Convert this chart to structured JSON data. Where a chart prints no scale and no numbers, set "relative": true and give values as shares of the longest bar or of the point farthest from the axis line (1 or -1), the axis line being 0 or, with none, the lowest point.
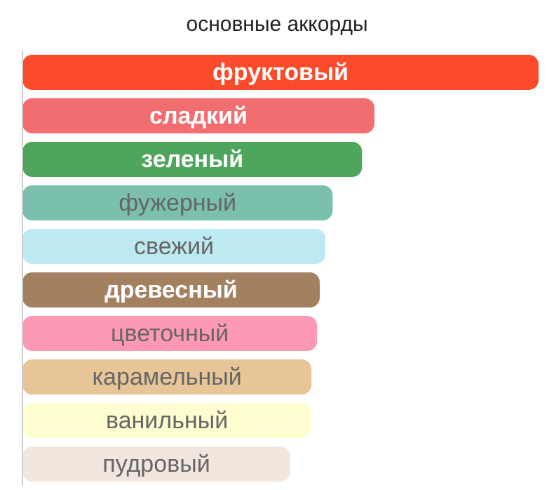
{
  "chart_data": {
    "type": "bar",
    "orientation": "horizontal",
    "relative": true,
    "title": "основные аккорды",
    "categories": [
      "фруктовый",
      "сладкий",
      "зеленый",
      "фужерный",
      "свежий",
      "древесный",
      "цветочный",
      "карамельный",
      "ванильный",
      "пудровый"
    ],
    "values": [
      1,
      0.682,
      0.658,
      0.601,
      0.587,
      0.576,
      0.571,
      0.56,
      0.56,
      0.519
    ],
    "colors": [
      "#fc4b2a",
      "#f26d6f",
      "#4ea65c",
      "#7bbfae",
      "#bdeaf1",
      "#a3805f",
      "#fe99b5",
      "#e8c596",
      "#fffed0",
      "#f2e7df"
    ]
  }
}
